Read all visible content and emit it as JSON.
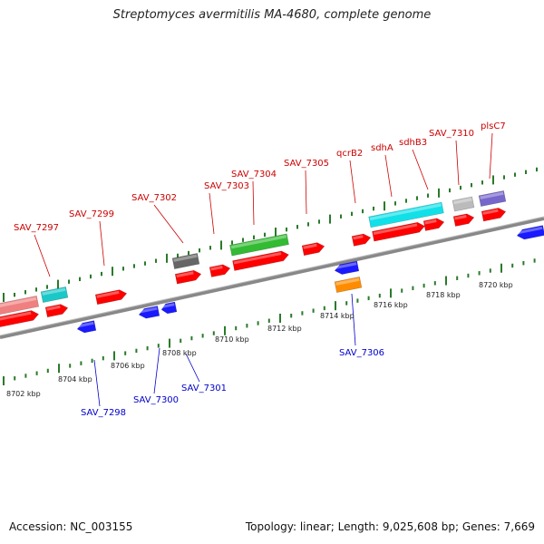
{
  "title": "Streptomyces avermitilis MA-4680, complete genome",
  "footer": {
    "accession": "Accession: NC_003155",
    "meta": "Topology: linear; Length: 9,025,608 bp; Genes: 7,669"
  },
  "colors": {
    "forward_label": "#cc0000",
    "reverse_label": "#0000cc",
    "backbone": "#888888",
    "tick": "#2a7a2a",
    "red": "#ff0000",
    "blue": "#1a1aff",
    "cyan": "#12e0e8",
    "teal": "#1bc8c8",
    "salmon": "#f08080",
    "green": "#33bb33",
    "grey": "#666666",
    "lightgrey": "#bbbbbb",
    "purple": "#7766cc",
    "orange": "#ff8c00"
  },
  "axis_labels": [
    "8702 kbp",
    "8704 kbp",
    "8706 kbp",
    "8708 kbp",
    "8710 kbp",
    "8712 kbp",
    "8714 kbp",
    "8716 kbp",
    "8718 kbp",
    "8720 kbp"
  ],
  "forward_labels": [
    "SAV_7297",
    "SAV_7299",
    "SAV_7302",
    "SAV_7303",
    "SAV_7304",
    "SAV_7305",
    "qcrB2",
    "sdhA",
    "sdhB3",
    "SAV_7310",
    "plsC7"
  ],
  "reverse_labels": [
    "SAV_7298",
    "SAV_7300",
    "SAV_7301",
    "SAV_7306"
  ]
}
